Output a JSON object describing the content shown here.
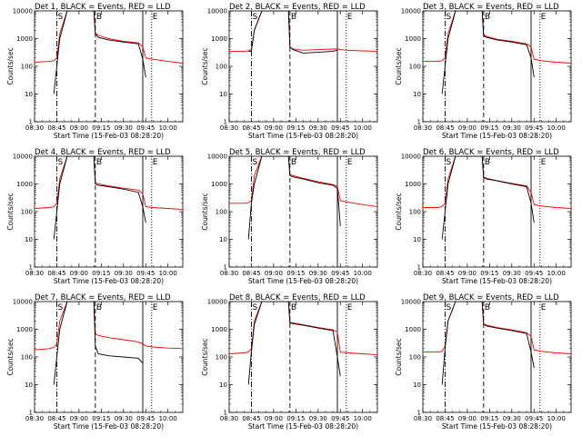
{
  "colors": {
    "events": "#000000",
    "lld": "#ff0000",
    "axes": "#000000",
    "background": "#ffffff"
  },
  "axes": {
    "ylabel": "Counts/sec",
    "xlabel": "Start Time (15-Feb-03 08:28:20)",
    "yscale": "log",
    "ylim": [
      1,
      10000
    ],
    "yticks": [
      "1",
      "10",
      "100",
      "1000",
      "10000"
    ],
    "xlim": [
      "08:30",
      "10:10"
    ],
    "xticks": [
      "08:30",
      "08:45",
      "09:00",
      "09:15",
      "09:30",
      "09:45",
      "10:00"
    ]
  },
  "markers": [
    {
      "time": "08:45",
      "style": "dash-dot",
      "label": "S"
    },
    {
      "time": "09:11",
      "style": "dashed",
      "label": "B"
    },
    {
      "time": "09:43",
      "style": "solid",
      "label": ""
    },
    {
      "time": "09:49",
      "style": "dotted",
      "label": "E"
    }
  ],
  "chart_data": [
    {
      "type": "line",
      "title": "Det 1, BLACK = Events, RED = LLD",
      "x": [
        "08:30",
        "08:40",
        "08:43",
        "08:45",
        "08:47",
        "08:52",
        "09:00",
        "09:10",
        "09:11",
        "09:13",
        "09:20",
        "09:30",
        "09:40",
        "09:43",
        "09:45",
        "09:50",
        "10:00",
        "10:10"
      ],
      "series": [
        {
          "name": "Events",
          "values": [
            null,
            null,
            10,
            100,
            1000,
            10000,
            10000,
            10000,
            1500,
            1100,
            900,
            750,
            650,
            180,
            40,
            null,
            null,
            null
          ]
        },
        {
          "name": "LLD",
          "values": [
            140,
            150,
            160,
            200,
            1500,
            10000,
            10000,
            10000,
            1600,
            1300,
            1000,
            800,
            700,
            500,
            200,
            180,
            150,
            130
          ]
        }
      ]
    },
    {
      "type": "line",
      "title": "Det 2, BLACK = Events, RED = LLD",
      "x": [
        "08:30",
        "08:40",
        "08:43",
        "08:45",
        "08:47",
        "08:52",
        "09:00",
        "09:10",
        "09:11",
        "09:13",
        "09:20",
        "09:30",
        "09:40",
        "09:43",
        "09:45",
        "09:50",
        "10:00",
        "10:10"
      ],
      "series": [
        {
          "name": "Events",
          "values": [
            null,
            null,
            350,
            350,
            2000,
            10000,
            10000,
            10000,
            500,
            400,
            300,
            320,
            350,
            380,
            null,
            null,
            null,
            null
          ]
        },
        {
          "name": "LLD",
          "values": [
            350,
            350,
            360,
            400,
            2000,
            10000,
            10000,
            10000,
            500,
            420,
            380,
            400,
            420,
            420,
            400,
            380,
            360,
            350
          ]
        }
      ]
    },
    {
      "type": "line",
      "title": "Det 3, BLACK = Events, RED = LLD",
      "x": [
        "08:30",
        "08:40",
        "08:43",
        "08:45",
        "08:47",
        "08:52",
        "09:00",
        "09:10",
        "09:11",
        "09:13",
        "09:20",
        "09:30",
        "09:40",
        "09:43",
        "09:45",
        "09:50",
        "10:00",
        "10:10"
      ],
      "series": [
        {
          "name": "Events",
          "values": [
            null,
            null,
            10,
            100,
            1000,
            10000,
            10000,
            10000,
            1300,
            1100,
            900,
            750,
            600,
            200,
            40,
            null,
            null,
            null
          ]
        },
        {
          "name": "LLD",
          "values": [
            150,
            150,
            160,
            200,
            1500,
            10000,
            10000,
            10000,
            1400,
            1200,
            950,
            800,
            650,
            500,
            180,
            160,
            140,
            130
          ]
        }
      ]
    },
    {
      "type": "line",
      "title": "Det 4, BLACK = Events, RED = LLD",
      "x": [
        "08:30",
        "08:40",
        "08:43",
        "08:45",
        "08:47",
        "08:52",
        "09:00",
        "09:10",
        "09:11",
        "09:13",
        "09:20",
        "09:30",
        "09:40",
        "09:43",
        "09:45",
        "09:50",
        "10:00",
        "10:10"
      ],
      "series": [
        {
          "name": "Events",
          "values": [
            null,
            null,
            10,
            100,
            1000,
            10000,
            10000,
            10000,
            1000,
            900,
            800,
            650,
            500,
            150,
            40,
            null,
            null,
            null
          ]
        },
        {
          "name": "LLD",
          "values": [
            130,
            140,
            150,
            200,
            1500,
            10000,
            10000,
            10000,
            1100,
            1000,
            850,
            700,
            600,
            450,
            150,
            140,
            130,
            120
          ]
        }
      ]
    },
    {
      "type": "line",
      "title": "Det 5, BLACK = Events, RED = LLD",
      "x": [
        "08:30",
        "08:40",
        "08:43",
        "08:45",
        "08:47",
        "08:52",
        "09:00",
        "09:10",
        "09:11",
        "09:13",
        "09:20",
        "09:30",
        "09:40",
        "09:43",
        "09:45",
        "09:50",
        "10:00",
        "10:10"
      ],
      "series": [
        {
          "name": "Events",
          "values": [
            null,
            null,
            10,
            200,
            1000,
            10000,
            10000,
            10000,
            2000,
            1800,
            1500,
            1100,
            900,
            700,
            30,
            null,
            null,
            null
          ]
        },
        {
          "name": "LLD",
          "values": [
            200,
            200,
            210,
            250,
            2000,
            10000,
            10000,
            10000,
            2200,
            2000,
            1600,
            1200,
            950,
            800,
            250,
            220,
            180,
            150
          ]
        }
      ]
    },
    {
      "type": "line",
      "title": "Det 6, BLACK = Events, RED = LLD",
      "x": [
        "08:30",
        "08:40",
        "08:43",
        "08:45",
        "08:47",
        "08:52",
        "09:00",
        "09:10",
        "09:11",
        "09:13",
        "09:20",
        "09:30",
        "09:40",
        "09:43",
        "09:45",
        "09:50",
        "10:00",
        "10:10"
      ],
      "series": [
        {
          "name": "Events",
          "values": [
            null,
            null,
            10,
            100,
            1000,
            10000,
            10000,
            10000,
            1700,
            1500,
            1300,
            1000,
            800,
            200,
            40,
            null,
            null,
            null
          ]
        },
        {
          "name": "LLD",
          "values": [
            140,
            140,
            150,
            200,
            1500,
            10000,
            10000,
            10000,
            1800,
            1600,
            1300,
            1050,
            850,
            500,
            180,
            160,
            140,
            130
          ]
        }
      ]
    },
    {
      "type": "line",
      "title": "Det 7, BLACK = Events, RED = LLD",
      "x": [
        "08:30",
        "08:40",
        "08:43",
        "08:45",
        "08:47",
        "08:52",
        "09:00",
        "09:10",
        "09:11",
        "09:13",
        "09:20",
        "09:30",
        "09:40",
        "09:43",
        "09:45",
        "09:50",
        "10:00",
        "10:10"
      ],
      "series": [
        {
          "name": "Events",
          "values": [
            null,
            null,
            10,
            100,
            1000,
            10000,
            10000,
            10000,
            250,
            130,
            110,
            100,
            90,
            60,
            null,
            null,
            null,
            null
          ]
        },
        {
          "name": "LLD",
          "values": [
            180,
            200,
            220,
            300,
            2000,
            10000,
            10000,
            10000,
            700,
            600,
            500,
            420,
            350,
            300,
            250,
            230,
            210,
            200
          ]
        }
      ]
    },
    {
      "type": "line",
      "title": "Det 8, BLACK = Events, RED = LLD",
      "x": [
        "08:30",
        "08:40",
        "08:43",
        "08:45",
        "08:47",
        "08:52",
        "09:00",
        "09:10",
        "09:11",
        "09:13",
        "09:20",
        "09:30",
        "09:40",
        "09:43",
        "09:45",
        "09:50",
        "10:00",
        "10:10"
      ],
      "series": [
        {
          "name": "Events",
          "values": [
            null,
            null,
            10,
            150,
            1500,
            10000,
            10000,
            10000,
            1700,
            1600,
            1400,
            1100,
            900,
            100,
            20,
            null,
            null,
            null
          ]
        },
        {
          "name": "LLD",
          "values": [
            130,
            140,
            150,
            200,
            2000,
            10000,
            10000,
            10000,
            1800,
            1700,
            1450,
            1150,
            950,
            800,
            150,
            140,
            130,
            120
          ]
        }
      ]
    },
    {
      "type": "line",
      "title": "Det 9, BLACK = Events, RED = LLD",
      "x": [
        "08:30",
        "08:40",
        "08:43",
        "08:45",
        "08:47",
        "08:52",
        "09:00",
        "09:10",
        "09:11",
        "09:13",
        "09:20",
        "09:30",
        "09:40",
        "09:43",
        "09:45",
        "09:50",
        "10:00",
        "10:10"
      ],
      "series": [
        {
          "name": "Events",
          "values": [
            null,
            null,
            10,
            200,
            2000,
            10000,
            10000,
            10000,
            1500,
            1300,
            1100,
            900,
            700,
            150,
            40,
            null,
            null,
            null
          ]
        },
        {
          "name": "LLD",
          "values": [
            150,
            150,
            160,
            250,
            2000,
            10000,
            10000,
            10000,
            1600,
            1400,
            1150,
            950,
            750,
            550,
            180,
            160,
            140,
            130
          ]
        }
      ]
    }
  ]
}
